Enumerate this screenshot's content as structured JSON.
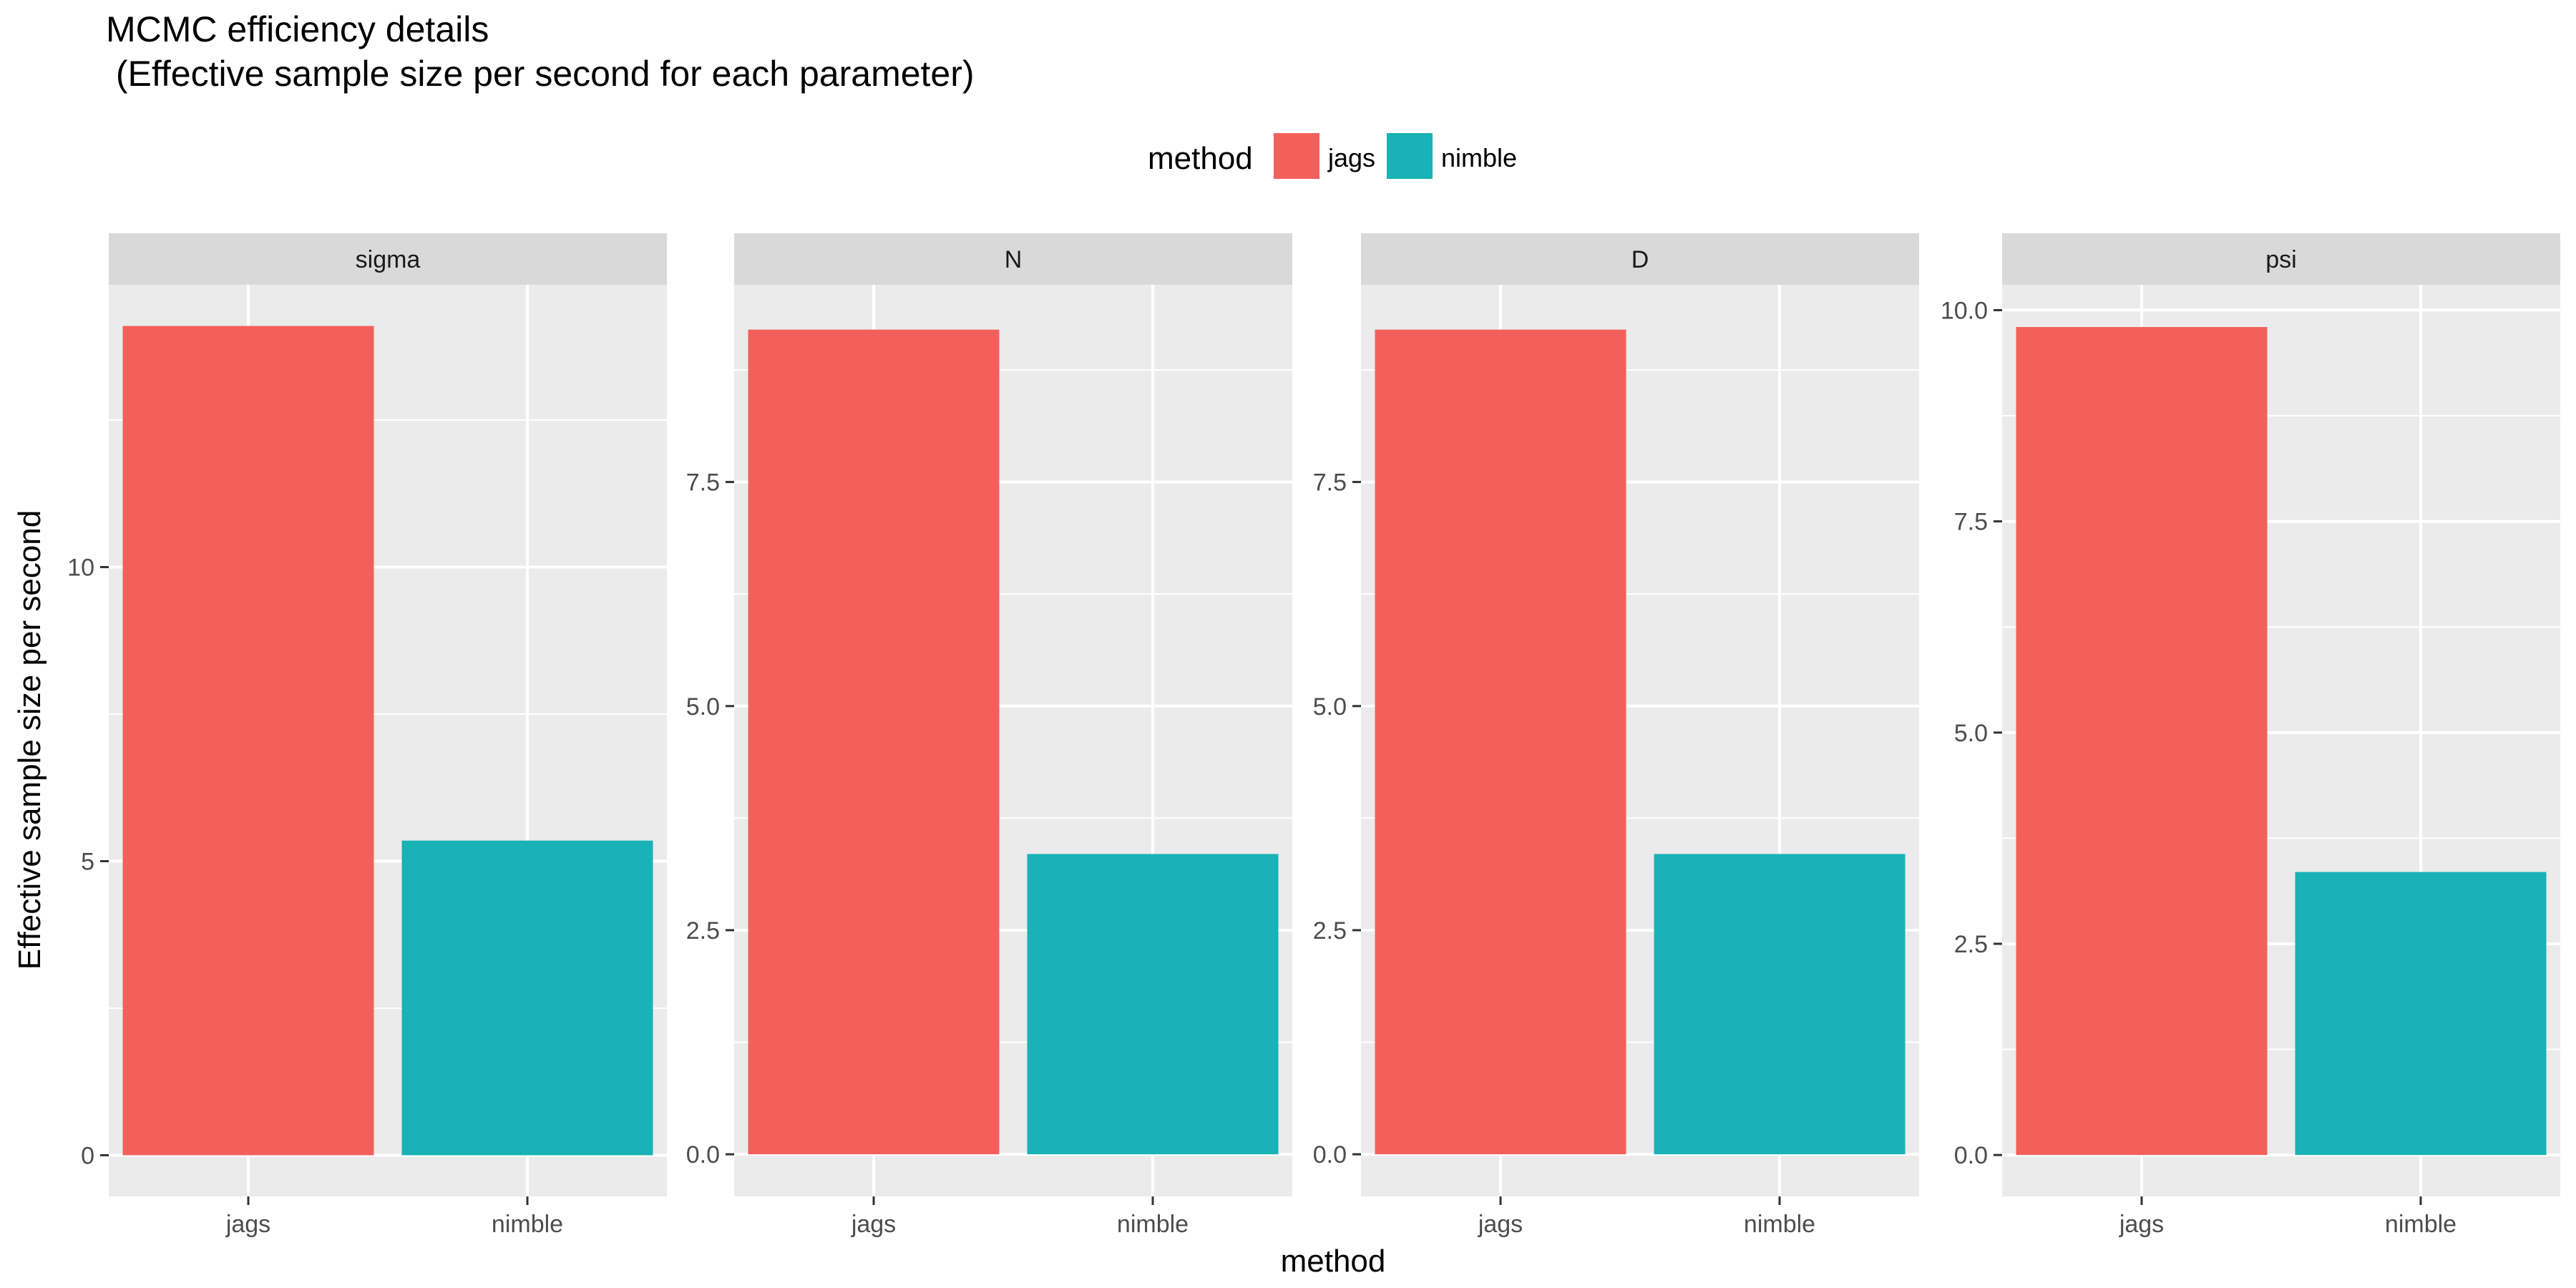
{
  "chart_data": {
    "type": "bar",
    "title": "MCMC efficiency details",
    "subtitle": " (Effective sample size per second for each parameter)",
    "xlabel": "method",
    "ylabel": "Effective sample size per second",
    "legend": {
      "title": "method",
      "placement": "top",
      "entries": [
        {
          "label": "jags",
          "color": "#F3605B"
        },
        {
          "label": "nimble",
          "color": "#19B2B6"
        }
      ]
    },
    "grid": true,
    "categories": [
      "jags",
      "nimble"
    ],
    "facets": [
      {
        "name": "sigma",
        "values": [
          14.1,
          5.35
        ],
        "ylim": [
          -0.7,
          14.8
        ],
        "ticks": [
          0,
          5,
          10
        ],
        "tick_labels": [
          "0",
          "5",
          "10"
        ]
      },
      {
        "name": "N",
        "values": [
          9.2,
          3.35
        ],
        "ylim": [
          -0.47,
          9.7
        ],
        "ticks": [
          0.0,
          2.5,
          5.0,
          7.5
        ],
        "tick_labels": [
          "0.0",
          "2.5",
          "5.0",
          "7.5"
        ]
      },
      {
        "name": "D",
        "values": [
          9.2,
          3.35
        ],
        "ylim": [
          -0.47,
          9.7
        ],
        "ticks": [
          0.0,
          2.5,
          5.0,
          7.5
        ],
        "tick_labels": [
          "0.0",
          "2.5",
          "5.0",
          "7.5"
        ]
      },
      {
        "name": "psi",
        "values": [
          9.8,
          3.35
        ],
        "ylim": [
          -0.49,
          10.3
        ],
        "ticks": [
          0.0,
          2.5,
          5.0,
          7.5,
          10.0
        ],
        "tick_labels": [
          "0.0",
          "2.5",
          "5.0",
          "7.5",
          "10.0"
        ]
      }
    ]
  }
}
